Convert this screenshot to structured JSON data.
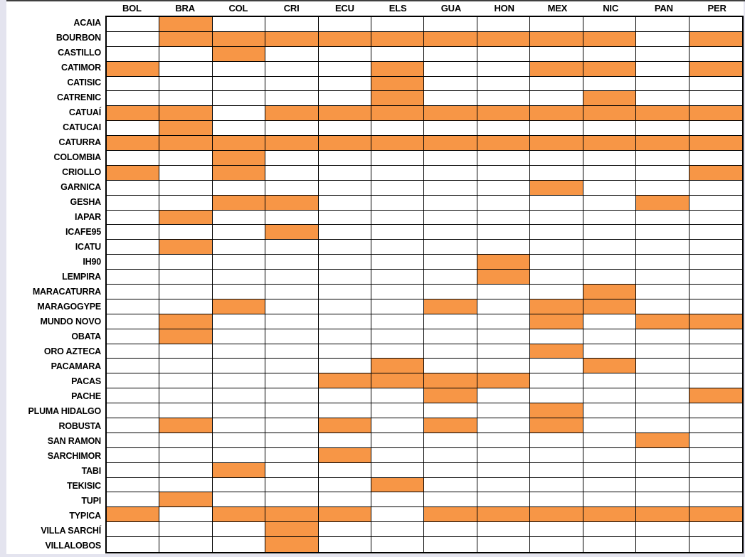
{
  "page": {
    "background_color": "#E4E4EF",
    "panel_color": "#FFFFFF",
    "top_line_color": "#3F3F3F"
  },
  "chart_data": {
    "type": "heatmap",
    "title": "",
    "xlabel": "",
    "ylabel": "",
    "legend_position": "none",
    "grid": true,
    "fill_color": "#F79646",
    "empty_color": "#FFFFFF",
    "grid_border_color": "#000000",
    "columns": [
      "BOL",
      "BRA",
      "COL",
      "CRI",
      "ECU",
      "ELS",
      "GUA",
      "HON",
      "MEX",
      "NIC",
      "PAN",
      "PER"
    ],
    "rows": [
      "ACAIA",
      "BOURBON",
      "CASTILLO",
      "CATIMOR",
      "CATISIC",
      "CATRENIC",
      "CATUAÍ",
      "CATUCAI",
      "CATURRA",
      "COLOMBIA",
      "CRIOLLO",
      "GARNICA",
      "GESHA",
      "IAPAR",
      "ICAFE95",
      "ICATU",
      "IH90",
      "LEMPIRA",
      "MARACATURRA",
      "MARAGOGYPE",
      "MUNDO NOVO",
      "OBATA",
      "ORO AZTECA",
      "PACAMARA",
      "PACAS",
      "PACHE",
      "PLUMA HIDALGO",
      "ROBUSTA",
      "SAN RAMON",
      "SARCHIMOR",
      "TABI",
      "TEKISIC",
      "TUPI",
      "TYPICA",
      "VILLA SARCHÍ",
      "VILLALOBOS"
    ],
    "cells": [
      [
        0,
        1,
        0,
        0,
        0,
        0,
        0,
        0,
        0,
        0,
        0,
        0
      ],
      [
        0,
        1,
        1,
        1,
        1,
        1,
        1,
        1,
        1,
        1,
        0,
        1
      ],
      [
        0,
        0,
        1,
        0,
        0,
        0,
        0,
        0,
        0,
        0,
        0,
        0
      ],
      [
        1,
        0,
        0,
        0,
        0,
        1,
        0,
        0,
        1,
        1,
        0,
        1
      ],
      [
        0,
        0,
        0,
        0,
        0,
        1,
        0,
        0,
        0,
        0,
        0,
        0
      ],
      [
        0,
        0,
        0,
        0,
        0,
        1,
        0,
        0,
        0,
        1,
        0,
        0
      ],
      [
        1,
        1,
        0,
        1,
        1,
        1,
        1,
        1,
        1,
        1,
        1,
        1
      ],
      [
        0,
        1,
        0,
        0,
        0,
        0,
        0,
        0,
        0,
        0,
        0,
        0
      ],
      [
        1,
        1,
        1,
        1,
        1,
        1,
        1,
        1,
        1,
        1,
        1,
        1
      ],
      [
        0,
        0,
        1,
        0,
        0,
        0,
        0,
        0,
        0,
        0,
        0,
        0
      ],
      [
        1,
        0,
        1,
        0,
        0,
        0,
        0,
        0,
        0,
        0,
        0,
        1
      ],
      [
        0,
        0,
        0,
        0,
        0,
        0,
        0,
        0,
        1,
        0,
        0,
        0
      ],
      [
        0,
        0,
        1,
        1,
        0,
        0,
        0,
        0,
        0,
        0,
        1,
        0
      ],
      [
        0,
        1,
        0,
        0,
        0,
        0,
        0,
        0,
        0,
        0,
        0,
        0
      ],
      [
        0,
        0,
        0,
        1,
        0,
        0,
        0,
        0,
        0,
        0,
        0,
        0
      ],
      [
        0,
        1,
        0,
        0,
        0,
        0,
        0,
        0,
        0,
        0,
        0,
        0
      ],
      [
        0,
        0,
        0,
        0,
        0,
        0,
        0,
        1,
        0,
        0,
        0,
        0
      ],
      [
        0,
        0,
        0,
        0,
        0,
        0,
        0,
        1,
        0,
        0,
        0,
        0
      ],
      [
        0,
        0,
        0,
        0,
        0,
        0,
        0,
        0,
        0,
        1,
        0,
        0
      ],
      [
        0,
        0,
        1,
        0,
        0,
        0,
        1,
        0,
        1,
        1,
        0,
        0
      ],
      [
        0,
        1,
        0,
        0,
        0,
        0,
        0,
        0,
        1,
        0,
        1,
        1
      ],
      [
        0,
        1,
        0,
        0,
        0,
        0,
        0,
        0,
        0,
        0,
        0,
        0
      ],
      [
        0,
        0,
        0,
        0,
        0,
        0,
        0,
        0,
        1,
        0,
        0,
        0
      ],
      [
        0,
        0,
        0,
        0,
        0,
        1,
        0,
        0,
        0,
        1,
        0,
        0
      ],
      [
        0,
        0,
        0,
        0,
        1,
        1,
        1,
        1,
        0,
        0,
        0,
        0
      ],
      [
        0,
        0,
        0,
        0,
        0,
        0,
        1,
        0,
        0,
        0,
        0,
        1
      ],
      [
        0,
        0,
        0,
        0,
        0,
        0,
        0,
        0,
        1,
        0,
        0,
        0
      ],
      [
        0,
        1,
        0,
        0,
        1,
        0,
        1,
        0,
        1,
        0,
        0,
        0
      ],
      [
        0,
        0,
        0,
        0,
        0,
        0,
        0,
        0,
        0,
        0,
        1,
        0
      ],
      [
        0,
        0,
        0,
        0,
        1,
        0,
        0,
        0,
        0,
        0,
        0,
        0
      ],
      [
        0,
        0,
        1,
        0,
        0,
        0,
        0,
        0,
        0,
        0,
        0,
        0
      ],
      [
        0,
        0,
        0,
        0,
        0,
        1,
        0,
        0,
        0,
        0,
        0,
        0
      ],
      [
        0,
        1,
        0,
        0,
        0,
        0,
        0,
        0,
        0,
        0,
        0,
        0
      ],
      [
        1,
        0,
        1,
        1,
        1,
        0,
        1,
        1,
        1,
        1,
        1,
        1
      ],
      [
        0,
        0,
        0,
        1,
        0,
        0,
        0,
        0,
        0,
        0,
        0,
        0
      ],
      [
        0,
        0,
        0,
        1,
        0,
        0,
        0,
        0,
        0,
        0,
        0,
        0
      ]
    ]
  }
}
